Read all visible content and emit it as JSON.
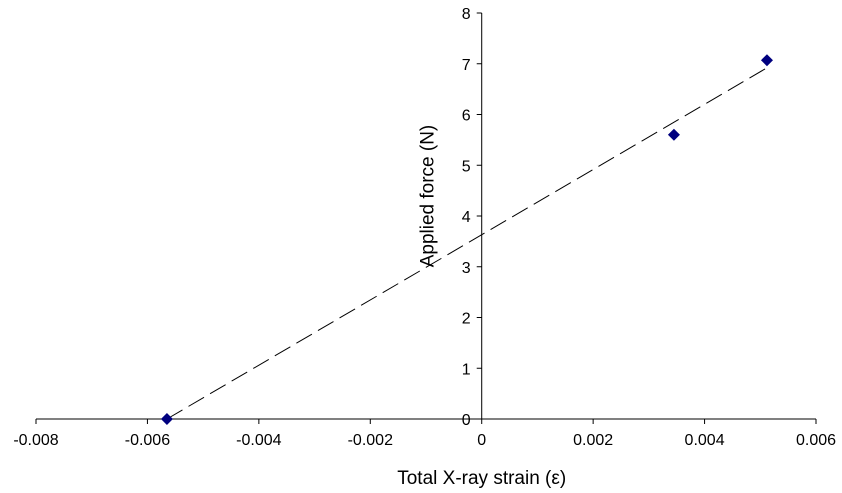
{
  "chart_data": {
    "type": "scatter",
    "title": "",
    "xlabel": "Total X-ray strain (ε)",
    "ylabel": "Applied force (N)",
    "xlim": [
      -0.008,
      0.006
    ],
    "ylim": [
      0,
      8
    ],
    "x_ticks": [
      -0.008,
      -0.006,
      -0.004,
      -0.002,
      0,
      0.002,
      0.004,
      0.006
    ],
    "x_tick_labels": [
      "-0.008",
      "-0.006",
      "-0.004",
      "-0.002",
      "0",
      "0.002",
      "0.004",
      "0.006"
    ],
    "y_ticks": [
      0,
      1,
      2,
      3,
      4,
      5,
      6,
      7,
      8
    ],
    "y_tick_labels": [
      "0",
      "1",
      "2",
      "3",
      "4",
      "5",
      "6",
      "7",
      "8"
    ],
    "grid": false,
    "legend": "none",
    "series": [
      {
        "marker": "diamond",
        "color": "#00007f",
        "points": [
          {
            "x": -0.00565,
            "y": 0.0
          },
          {
            "x": 0.00345,
            "y": 5.6
          },
          {
            "x": 0.00512,
            "y": 7.07
          }
        ]
      }
    ],
    "trendline": {
      "style": "dashed",
      "color": "#000000",
      "x_start": -0.00565,
      "y_start": 0.0,
      "x_end": 0.00512,
      "y_end": 6.92
    }
  }
}
